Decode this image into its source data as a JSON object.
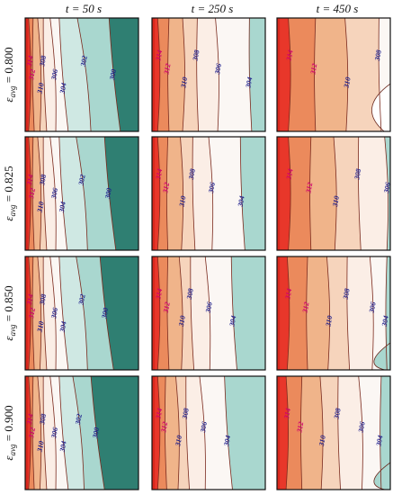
{
  "chart_data": {
    "type": "contour",
    "column_titles": [
      "t = 50 s",
      "t = 250 s",
      "t = 450 s"
    ],
    "row_labels": [
      "ε_avg = 0.800",
      "ε_avg = 0.825",
      "ε_avg = 0.850",
      "ε_avg = 0.900"
    ],
    "row_label_symbol": "ε",
    "row_label_sub": "avg",
    "row_values": [
      "0.800",
      "0.825",
      "0.850",
      "0.900"
    ],
    "contour_levels": [
      300,
      302,
      304,
      306,
      308,
      310,
      312,
      314
    ],
    "colors": {
      "hot": "#e8372a",
      "warm": "#f0b48a",
      "light": "#fbe9de",
      "neutral": "#fbf7f4",
      "cool": "#a9d7cf",
      "cold": "#2f7f72",
      "frame": "#111111"
    },
    "panels": [
      {
        "row": 0,
        "col": 0,
        "levels": [
          314,
          312,
          310,
          308,
          306,
          304,
          302,
          300
        ],
        "positions": [
          0.03,
          0.07,
          0.11,
          0.16,
          0.22,
          0.3,
          0.46,
          0.74
        ],
        "bottom_shift": [
          0.0,
          0.01,
          0.02,
          0.03,
          0.05,
          0.08,
          0.12,
          0.1
        ],
        "background": "#2f7f72"
      },
      {
        "row": 1,
        "col": 0,
        "levels": [
          314,
          312,
          310,
          308,
          306,
          304,
          302,
          300
        ],
        "positions": [
          0.03,
          0.07,
          0.11,
          0.16,
          0.22,
          0.3,
          0.45,
          0.7
        ],
        "bottom_shift": [
          0.0,
          0.01,
          0.02,
          0.03,
          0.05,
          0.07,
          0.1,
          0.1
        ],
        "background": "#2f7f72"
      },
      {
        "row": 2,
        "col": 0,
        "levels": [
          314,
          312,
          310,
          308,
          306,
          304,
          302,
          300
        ],
        "positions": [
          0.03,
          0.07,
          0.11,
          0.16,
          0.22,
          0.3,
          0.45,
          0.66
        ],
        "bottom_shift": [
          0.0,
          0.01,
          0.02,
          0.03,
          0.05,
          0.08,
          0.1,
          0.12
        ],
        "background": "#2f7f72"
      },
      {
        "row": 3,
        "col": 0,
        "levels": [
          314,
          312,
          310,
          308,
          306,
          304,
          302,
          300
        ],
        "positions": [
          0.03,
          0.07,
          0.11,
          0.16,
          0.22,
          0.3,
          0.42,
          0.58
        ],
        "bottom_shift": [
          0.0,
          0.01,
          0.02,
          0.03,
          0.05,
          0.08,
          0.1,
          0.12
        ],
        "background": "#2f7f72"
      },
      {
        "row": 0,
        "col": 1,
        "levels": [
          314,
          312,
          310,
          308,
          306,
          304
        ],
        "positions": [
          0.05,
          0.15,
          0.27,
          0.4,
          0.56,
          0.86
        ],
        "bottom_shift": [
          0.0,
          0.0,
          0.0,
          0.01,
          0.02,
          0.02
        ],
        "background": "#a9d7cf"
      },
      {
        "row": 1,
        "col": 1,
        "levels": [
          314,
          312,
          310,
          308,
          306,
          304
        ],
        "positions": [
          0.05,
          0.14,
          0.25,
          0.36,
          0.5,
          0.78
        ],
        "bottom_shift": [
          0.0,
          0.0,
          0.01,
          0.02,
          0.03,
          0.04
        ],
        "background": "#a9d7cf"
      },
      {
        "row": 2,
        "col": 1,
        "levels": [
          314,
          312,
          310,
          308,
          306,
          304
        ],
        "positions": [
          0.05,
          0.14,
          0.24,
          0.34,
          0.47,
          0.7
        ],
        "bottom_shift": [
          0.0,
          0.01,
          0.02,
          0.03,
          0.04,
          0.05
        ],
        "background": "#a9d7cf"
      },
      {
        "row": 3,
        "col": 1,
        "levels": [
          314,
          312,
          310,
          308,
          306,
          304
        ],
        "positions": [
          0.05,
          0.12,
          0.21,
          0.3,
          0.42,
          0.64
        ],
        "bottom_shift": [
          0.0,
          0.01,
          0.02,
          0.03,
          0.05,
          0.07
        ],
        "background": "#a9d7cf"
      },
      {
        "row": 0,
        "col": 2,
        "levels": [
          314,
          312,
          310,
          308
        ],
        "positions": [
          0.1,
          0.34,
          0.6,
          0.9
        ],
        "bottom_shift": [
          0.0,
          0.0,
          0.01,
          0.02
        ],
        "background": "#fbf7f4",
        "corner": {
          "level": 306,
          "color": "#ffffff"
        }
      },
      {
        "row": 1,
        "col": 2,
        "levels": [
          314,
          312,
          310,
          308,
          306
        ],
        "positions": [
          0.1,
          0.3,
          0.5,
          0.72,
          0.95
        ],
        "bottom_shift": [
          0.0,
          0.0,
          0.01,
          0.02,
          0.02
        ],
        "background": "#a9d7cf"
      },
      {
        "row": 2,
        "col": 2,
        "levels": [
          314,
          312,
          310,
          308,
          306,
          304
        ],
        "positions": [
          0.09,
          0.27,
          0.44,
          0.62,
          0.82,
          0.97
        ],
        "bottom_shift": [
          0.0,
          0.0,
          0.01,
          0.02,
          0.02,
          0.0
        ],
        "background": "#a9d7cf",
        "corner": {
          "level": 304,
          "color": "#a9d7cf"
        }
      },
      {
        "row": 3,
        "col": 2,
        "levels": [
          314,
          312,
          310,
          308,
          306,
          304
        ],
        "positions": [
          0.08,
          0.22,
          0.38,
          0.54,
          0.72,
          0.92
        ],
        "bottom_shift": [
          0.0,
          0.0,
          0.01,
          0.02,
          0.03,
          0.0
        ],
        "background": "#a9d7cf",
        "corner": {
          "level": 304,
          "color": "#a9d7cf"
        }
      }
    ]
  }
}
